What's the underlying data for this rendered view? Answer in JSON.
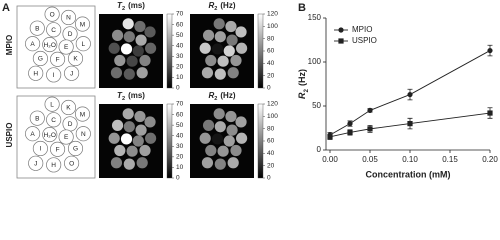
{
  "panel_a": {
    "letter": "A",
    "rows": [
      {
        "label": "MPIO",
        "phantom": [
          "O",
          "N",
          "M",
          "B",
          "C",
          "D",
          "A",
          "H₂O",
          "E",
          "L",
          "G",
          "F",
          "K",
          "H",
          "I",
          "J"
        ]
      },
      {
        "label": "USPIO",
        "phantom": [
          "L",
          "K",
          "M",
          "B",
          "C",
          "D",
          "A",
          "H₂O",
          "E",
          "N",
          "I",
          "F",
          "G",
          "J",
          "H",
          "O"
        ]
      }
    ],
    "maps": [
      {
        "symbol": "T",
        "subscript": "2",
        "unit": "(ms)",
        "lim": [
          0,
          70
        ],
        "ticks": [
          0,
          10,
          20,
          30,
          40,
          50,
          60,
          70
        ]
      },
      {
        "symbol": "R",
        "subscript": "2",
        "unit": "(Hz)",
        "lim": [
          0,
          120
        ],
        "ticks": [
          0,
          20,
          40,
          60,
          80,
          100,
          120
        ]
      }
    ]
  },
  "chart_data": {
    "type": "line",
    "letter": "B",
    "xlabel": "Concentration (mM)",
    "ylabel": {
      "symbol": "R",
      "subscript": "2",
      "unit": "(Hz)"
    },
    "x": [
      0,
      0.025,
      0.05,
      0.1,
      0.2
    ],
    "xlim": [
      -0.005,
      0.2
    ],
    "xticks": [
      {
        "value": 0,
        "label": "0.00"
      },
      {
        "value": 0.05,
        "label": "0.05"
      },
      {
        "value": 0.1,
        "label": "0.10"
      },
      {
        "value": 0.15,
        "label": "0.15"
      },
      {
        "value": 0.2,
        "label": "0.20"
      }
    ],
    "ylim": [
      0,
      150
    ],
    "yticks": [
      0,
      50,
      100,
      150
    ],
    "legend": "upper-left",
    "series": [
      {
        "name": "MPIO",
        "color": "#222222",
        "marker": "circle",
        "values": [
          17,
          30,
          45,
          63,
          113
        ],
        "errors": [
          3,
          3,
          2,
          6,
          6
        ]
      },
      {
        "name": "USPIO",
        "color": "#222222",
        "marker": "square",
        "values": [
          15,
          20,
          24,
          30,
          42
        ],
        "errors": [
          3,
          3,
          4,
          6,
          6
        ]
      }
    ]
  }
}
